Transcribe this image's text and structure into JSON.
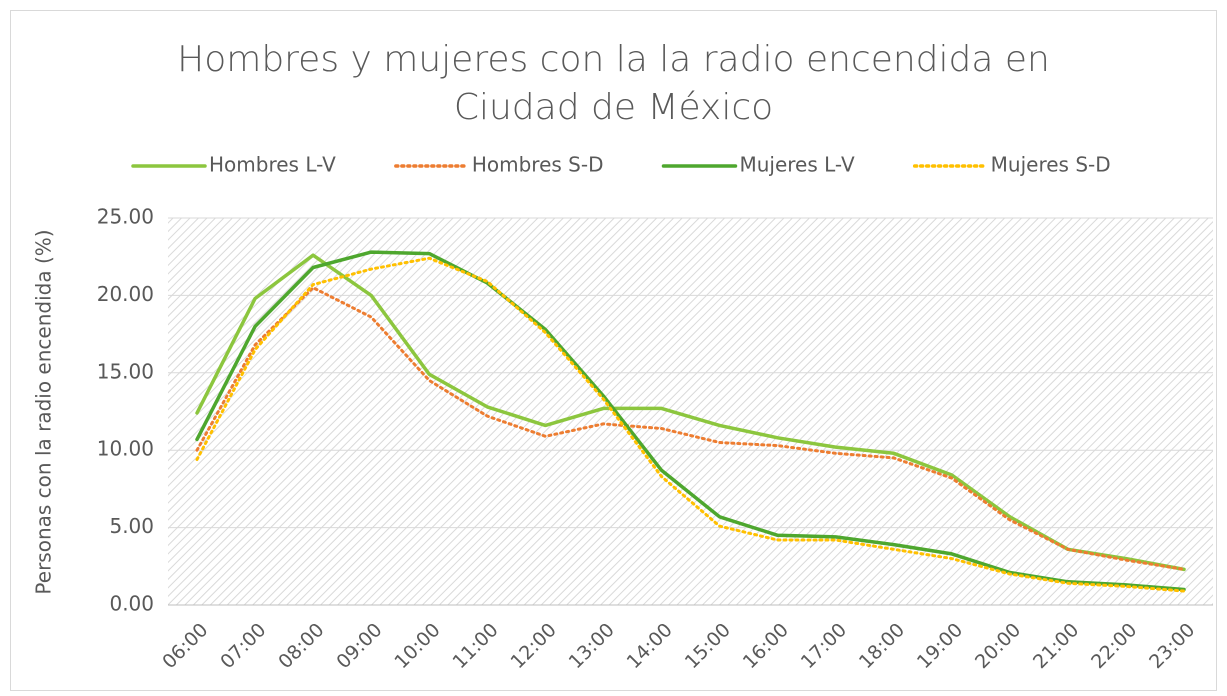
{
  "chart_data": {
    "type": "line",
    "title": "Hombres y mujeres con la la radio encendida en Ciudad de México",
    "y_label": "Personas con la radio encendida (%)",
    "categories": [
      "06:00",
      "07:00",
      "08:00",
      "09:00",
      "10:00",
      "11:00",
      "12:00",
      "13:00",
      "14:00",
      "15:00",
      "16:00",
      "17:00",
      "18:00",
      "19:00",
      "20:00",
      "21:00",
      "22:00",
      "23:00"
    ],
    "series": [
      {
        "name": "Hombres L-V",
        "color": "#8cc63e",
        "dash": "solid",
        "values": [
          12.4,
          19.8,
          22.6,
          20.0,
          14.9,
          12.8,
          11.6,
          12.7,
          12.7,
          11.6,
          10.8,
          10.2,
          9.8,
          8.4,
          5.7,
          3.6,
          3.0,
          2.3
        ]
      },
      {
        "name": "Hombres S-D",
        "color": "#ed7d31",
        "dash": "dotted",
        "values": [
          10.0,
          16.8,
          20.5,
          18.6,
          14.5,
          12.2,
          10.9,
          11.7,
          11.4,
          10.5,
          10.3,
          9.8,
          9.5,
          8.2,
          5.5,
          3.6,
          2.9,
          2.3
        ]
      },
      {
        "name": "Mujeres L-V",
        "color": "#4ea72e",
        "dash": "solid",
        "values": [
          10.7,
          18.0,
          21.8,
          22.8,
          22.7,
          20.8,
          17.8,
          13.5,
          8.7,
          5.7,
          4.5,
          4.4,
          3.9,
          3.3,
          2.1,
          1.5,
          1.3,
          1.0
        ]
      },
      {
        "name": "Mujeres S-D",
        "color": "#ffc000",
        "dash": "dotted",
        "values": [
          9.4,
          16.5,
          20.7,
          21.7,
          22.4,
          20.9,
          17.6,
          13.3,
          8.3,
          5.1,
          4.2,
          4.2,
          3.6,
          3.0,
          2.0,
          1.4,
          1.2,
          0.9
        ]
      }
    ],
    "ylim": [
      0,
      25
    ],
    "yticks": [
      {
        "value": 0,
        "label": "0.00"
      },
      {
        "value": 5,
        "label": "5.00"
      },
      {
        "value": 10,
        "label": "10.00"
      },
      {
        "value": 15,
        "label": "15.00"
      },
      {
        "value": 20,
        "label": "20.00"
      },
      {
        "value": 25,
        "label": "25.00"
      }
    ],
    "grid": true,
    "legend": "top"
  }
}
